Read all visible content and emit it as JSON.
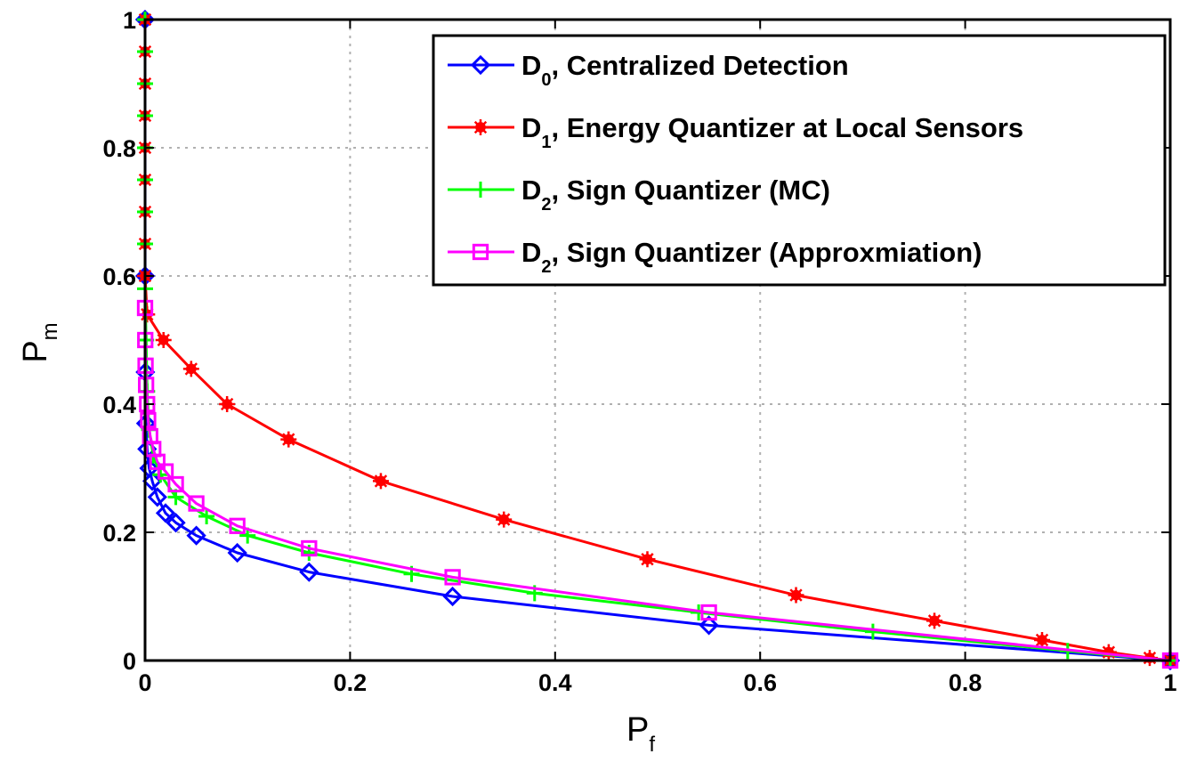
{
  "chart_data": {
    "type": "line",
    "xlabel": "P",
    "xlabel_sub": "f",
    "ylabel": "P",
    "ylabel_sub": "m",
    "xlim": [
      0,
      1
    ],
    "ylim": [
      0,
      1
    ],
    "x_ticks": [
      "0",
      "0.2",
      "0.4",
      "0.6",
      "0.8",
      "1"
    ],
    "y_ticks": [
      "0",
      "0.2",
      "0.4",
      "0.6",
      "0.8",
      "1"
    ],
    "grid": true,
    "legend_position": "top-right",
    "series": [
      {
        "name_main": "D",
        "name_sub": "0",
        "name_rest": ", Centralized Detection",
        "color": "#0000ff",
        "marker": "diamond",
        "x": [
          0.0,
          0.0001,
          0.0003,
          0.0008,
          0.002,
          0.004,
          0.007,
          0.012,
          0.02,
          0.03,
          0.05,
          0.09,
          0.16,
          0.3,
          0.55,
          1.0
        ],
        "y": [
          1.0,
          0.6,
          0.45,
          0.37,
          0.33,
          0.3,
          0.28,
          0.255,
          0.23,
          0.215,
          0.195,
          0.168,
          0.138,
          0.1,
          0.055,
          0.0
        ]
      },
      {
        "name_main": "D",
        "name_sub": "1",
        "name_rest": ", Energy Quantizer at Local Sensors",
        "color": "#ff0000",
        "marker": "star",
        "x": [
          0.0,
          0.0,
          0.0,
          0.0,
          0.0,
          0.0,
          0.0,
          0.0,
          0.0,
          0.002,
          0.018,
          0.045,
          0.08,
          0.14,
          0.23,
          0.35,
          0.49,
          0.635,
          0.77,
          0.875,
          0.94,
          0.98,
          1.0
        ],
        "y": [
          1.0,
          0.95,
          0.9,
          0.85,
          0.8,
          0.75,
          0.7,
          0.65,
          0.6,
          0.54,
          0.5,
          0.455,
          0.4,
          0.345,
          0.28,
          0.22,
          0.158,
          0.102,
          0.062,
          0.032,
          0.013,
          0.004,
          0.0
        ]
      },
      {
        "name_main": "D",
        "name_sub": "2",
        "name_rest": ", Sign Quantizer (MC)",
        "color": "#00ff00",
        "marker": "plus",
        "x": [
          0.0,
          0.0,
          0.0,
          0.0,
          0.0,
          0.0,
          0.0,
          0.0,
          0.0,
          0.001,
          0.002,
          0.004,
          0.008,
          0.015,
          0.03,
          0.06,
          0.1,
          0.16,
          0.26,
          0.38,
          0.54,
          0.71,
          0.9,
          1.0
        ],
        "y": [
          1.0,
          0.95,
          0.9,
          0.85,
          0.8,
          0.75,
          0.7,
          0.65,
          0.58,
          0.5,
          0.42,
          0.36,
          0.32,
          0.29,
          0.255,
          0.225,
          0.195,
          0.168,
          0.135,
          0.105,
          0.075,
          0.045,
          0.015,
          0.0
        ]
      },
      {
        "name_main": "D",
        "name_sub": "2",
        "name_rest": ", Sign Quantizer (Approxmiation)",
        "color": "#ff00ff",
        "marker": "square",
        "x": [
          0.0,
          0.0002,
          0.0005,
          0.001,
          0.002,
          0.003,
          0.005,
          0.008,
          0.012,
          0.02,
          0.03,
          0.05,
          0.09,
          0.16,
          0.3,
          0.55,
          1.0
        ],
        "y": [
          0.55,
          0.5,
          0.46,
          0.43,
          0.4,
          0.375,
          0.35,
          0.33,
          0.31,
          0.295,
          0.275,
          0.245,
          0.21,
          0.175,
          0.13,
          0.075,
          0.0
        ]
      }
    ]
  }
}
